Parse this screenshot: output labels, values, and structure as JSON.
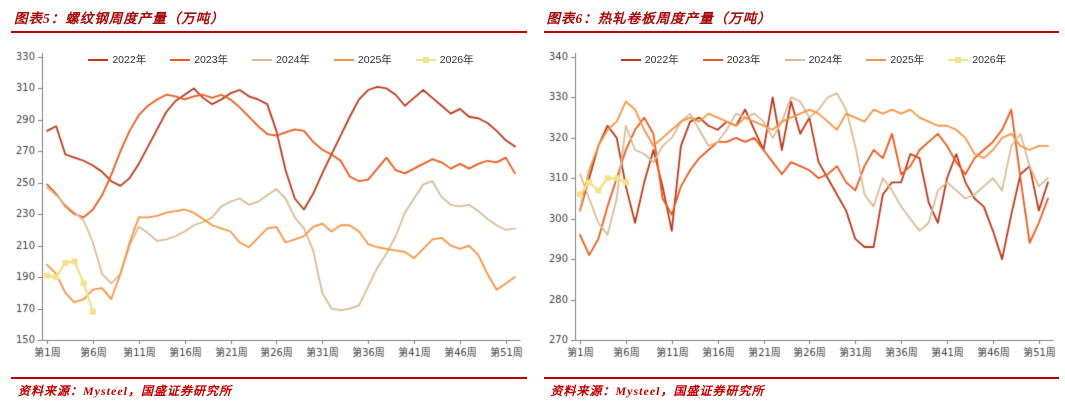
{
  "panels": [
    {
      "source": "资料来源：Mysteel，国盛证券研究所"
    },
    {
      "source": "资料来源：Mysteel，国盛证券研究所"
    }
  ],
  "chart_data": [
    {
      "type": "line",
      "title": "图表5：螺纹钢周度产量（万吨）",
      "ylabel": "",
      "xlabel": "",
      "legend_position": "top",
      "grid": false,
      "weeks_total": 52,
      "x_tick_labels": [
        "第1周",
        "第6周",
        "第11周",
        "第16周",
        "第21周",
        "第26周",
        "第31周",
        "第36周",
        "第41周",
        "第46周",
        "第51周"
      ],
      "x_tick_weeks": [
        1,
        6,
        11,
        16,
        21,
        26,
        31,
        36,
        41,
        46,
        51
      ],
      "ylim": [
        150,
        330
      ],
      "y_ticks": [
        150,
        170,
        190,
        210,
        230,
        250,
        270,
        290,
        310,
        330
      ],
      "series": [
        {
          "name": "2022年",
          "color": "#b93a1a",
          "marker": "none",
          "values": [
            283,
            286,
            268,
            266,
            264,
            261,
            257,
            251,
            248,
            253,
            262,
            273,
            284,
            295,
            302,
            306,
            310,
            304,
            300,
            303,
            307,
            309,
            305,
            303,
            300,
            283,
            258,
            240,
            233,
            243,
            256,
            268,
            280,
            292,
            303,
            309,
            311,
            310,
            306,
            299,
            304,
            309,
            304,
            299,
            294,
            297,
            292,
            291,
            288,
            283,
            277,
            273
          ]
        },
        {
          "name": "2023年",
          "color": "#ea5a1d",
          "marker": "none",
          "values": [
            249,
            243,
            235,
            230,
            228,
            233,
            242,
            255,
            270,
            283,
            293,
            299,
            303,
            306,
            305,
            303,
            305,
            306,
            304,
            306,
            303,
            298,
            292,
            286,
            281,
            280,
            282,
            284,
            283,
            276,
            271,
            268,
            264,
            254,
            251,
            252,
            259,
            266,
            258,
            256,
            259,
            262,
            265,
            263,
            259,
            262,
            259,
            262,
            264,
            263,
            266,
            256
          ]
        },
        {
          "name": "2024年",
          "color": "#d9bd96",
          "marker": "none",
          "values": [
            247,
            242,
            236,
            231,
            226,
            212,
            192,
            186,
            192,
            210,
            222,
            218,
            213,
            214,
            216,
            219,
            223,
            225,
            228,
            235,
            238,
            240,
            236,
            238,
            242,
            246,
            240,
            228,
            221,
            207,
            180,
            170,
            169,
            170,
            172,
            184,
            196,
            205,
            216,
            231,
            240,
            249,
            251,
            241,
            236,
            235,
            236,
            232,
            227,
            223,
            220,
            221
          ]
        },
        {
          "name": "2025年",
          "color": "#f69544",
          "marker": "none",
          "values": [
            198,
            192,
            180,
            174,
            176,
            182,
            183,
            176,
            192,
            212,
            228,
            228,
            229,
            231,
            232,
            233,
            231,
            227,
            223,
            221,
            219,
            212,
            209,
            215,
            221,
            222,
            212,
            214,
            216,
            222,
            224,
            219,
            223,
            223,
            219,
            211,
            209,
            208,
            207,
            206,
            202,
            208,
            214,
            215,
            210,
            208,
            210,
            204,
            192,
            182,
            186,
            190
          ]
        },
        {
          "name": "2026年",
          "color": "#f4e189",
          "marker": "square",
          "values": [
            191,
            190,
            199,
            200,
            186,
            168
          ]
        }
      ]
    },
    {
      "type": "line",
      "title": "图表6：热轧卷板周度产量（万吨）",
      "ylabel": "",
      "xlabel": "",
      "legend_position": "top",
      "grid": false,
      "weeks_total": 52,
      "x_tick_labels": [
        "第1周",
        "第6周",
        "第11周",
        "第16周",
        "第21周",
        "第26周",
        "第31周",
        "第36周",
        "第41周",
        "第46周",
        "第51周"
      ],
      "x_tick_weeks": [
        1,
        6,
        11,
        16,
        21,
        26,
        31,
        36,
        41,
        46,
        51
      ],
      "ylim": [
        270,
        340
      ],
      "y_ticks": [
        270,
        280,
        290,
        300,
        310,
        320,
        330,
        340
      ],
      "series": [
        {
          "name": "2022年",
          "color": "#b93a1a",
          "marker": "none",
          "values": [
            302,
            310,
            318,
            323,
            320,
            308,
            299,
            309,
            317,
            308,
            297,
            318,
            324,
            325,
            323,
            322,
            324,
            323,
            327,
            322,
            317,
            330,
            317,
            329,
            321,
            325,
            314,
            310,
            306,
            302,
            295,
            293,
            293,
            306,
            309,
            309,
            316,
            315,
            304,
            299,
            310,
            316,
            309,
            305,
            303,
            297,
            290,
            301,
            311,
            313,
            302,
            309
          ]
        },
        {
          "name": "2023年",
          "color": "#ea5a1d",
          "marker": "none",
          "values": [
            296,
            291,
            295,
            303,
            310,
            317,
            322,
            325,
            321,
            305,
            301,
            308,
            312,
            315,
            317,
            319,
            319,
            320,
            319,
            320,
            317,
            314,
            311,
            314,
            313,
            312,
            310,
            311,
            313,
            309,
            307,
            313,
            317,
            315,
            321,
            311,
            313,
            317,
            319,
            321,
            318,
            314,
            311,
            315,
            317,
            319,
            322,
            327,
            310,
            294,
            299,
            305
          ]
        },
        {
          "name": "2024年",
          "color": "#d9bd96",
          "marker": "none",
          "values": [
            311,
            305,
            299,
            296,
            305,
            323,
            317,
            316,
            314,
            318,
            320,
            324,
            326,
            322,
            318,
            319,
            322,
            326,
            325,
            326,
            324,
            320,
            324,
            330,
            329,
            325,
            327,
            330,
            331,
            327,
            318,
            306,
            303,
            310,
            307,
            303,
            300,
            297,
            299,
            307,
            309,
            307,
            305,
            306,
            308,
            310,
            307,
            318,
            321,
            313,
            308,
            310
          ]
        },
        {
          "name": "2025年",
          "color": "#f69544",
          "marker": "none",
          "values": [
            302,
            312,
            318,
            322,
            324,
            329,
            327,
            322,
            318,
            320,
            322,
            324,
            325,
            324,
            326,
            325,
            324,
            323,
            325,
            324,
            323,
            322,
            324,
            325,
            326,
            327,
            326,
            324,
            322,
            326,
            325,
            324,
            327,
            326,
            327,
            326,
            327,
            325,
            324,
            323,
            323,
            322,
            320,
            316,
            315,
            317,
            320,
            321,
            318,
            317,
            318,
            318
          ]
        },
        {
          "name": "2026年",
          "color": "#f4e189",
          "marker": "square",
          "values": [
            306,
            309,
            307,
            310,
            310,
            309
          ]
        }
      ]
    }
  ],
  "style": {
    "title_color": "#a60d0d",
    "rule_color": "#c00000",
    "axis_color": "#7f7f7f",
    "tick_label_color": "#404040"
  }
}
